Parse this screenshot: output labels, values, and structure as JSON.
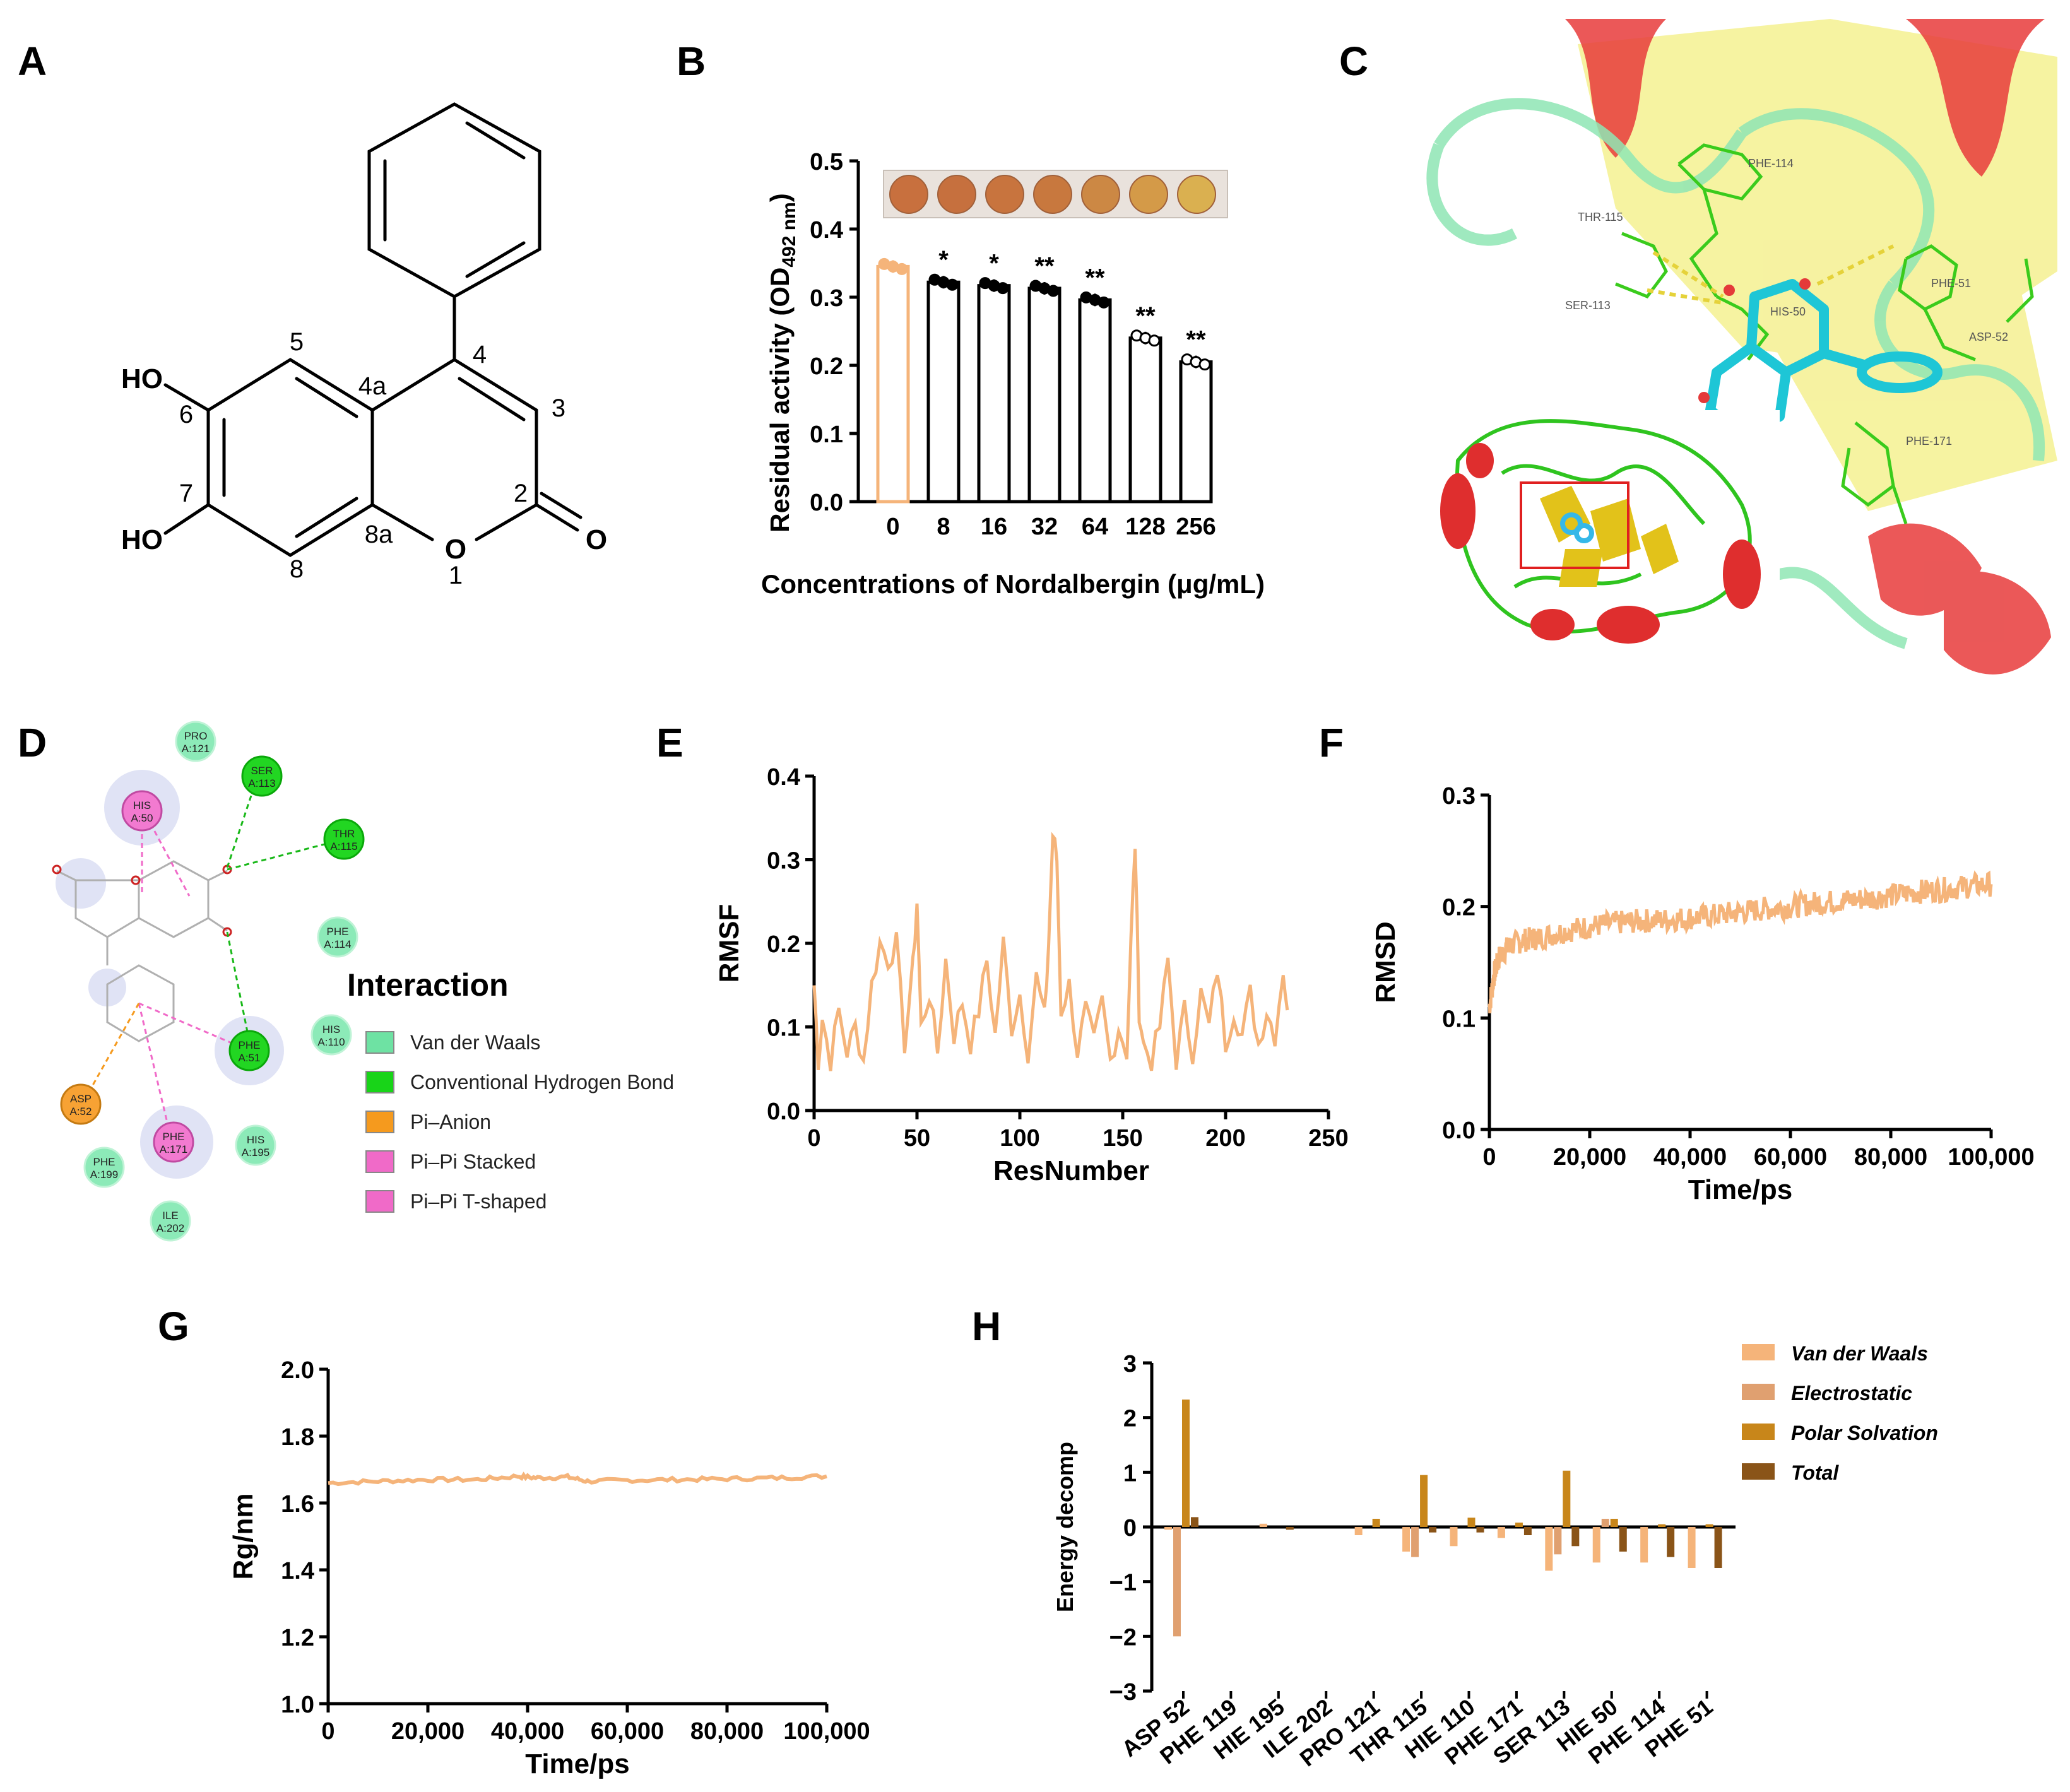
{
  "panels": {
    "A": "A",
    "B": "B",
    "C": "C",
    "D": "D",
    "E": "E",
    "F": "F",
    "G": "G",
    "H": "H"
  },
  "structure": {
    "atoms": [
      "5",
      "4",
      "4a",
      "3",
      "6",
      "2",
      "7",
      "8a",
      "8",
      "1"
    ],
    "substituents": [
      "HO",
      "HO",
      "O",
      "O"
    ]
  },
  "docking": {
    "labels": [
      "PHE-114",
      "THR-115",
      "SER-113",
      "HIS-50",
      "PHE-51",
      "ASP-52",
      "PHE-171"
    ]
  },
  "interaction": {
    "title": "Interaction",
    "legend": [
      {
        "label": "Van der Waals",
        "color": "#6ee2a3"
      },
      {
        "label": "Conventional Hydrogen Bond",
        "color": "#18d418"
      },
      {
        "label": "Pi–Anion",
        "color": "#f59a1e"
      },
      {
        "label": "Pi–Pi Stacked",
        "color": "#f06ac8"
      },
      {
        "label": "Pi–Pi T-shaped",
        "color": "#f06ac8"
      }
    ],
    "residues": [
      {
        "line1": "PRO",
        "line2": "A:121",
        "kind": "vdw"
      },
      {
        "line1": "SER",
        "line2": "A:113",
        "kind": "hbond"
      },
      {
        "line1": "HIS",
        "line2": "A:50",
        "kind": "pi"
      },
      {
        "line1": "THR",
        "line2": "A:115",
        "kind": "hbond"
      },
      {
        "line1": "PHE",
        "line2": "A:114",
        "kind": "vdw"
      },
      {
        "line1": "HIS",
        "line2": "A:110",
        "kind": "vdw"
      },
      {
        "line1": "PHE",
        "line2": "A:51",
        "kind": "hbond"
      },
      {
        "line1": "ASP",
        "line2": "A:52",
        "kind": "anion"
      },
      {
        "line1": "PHE",
        "line2": "A:171",
        "kind": "pi"
      },
      {
        "line1": "HIS",
        "line2": "A:195",
        "kind": "vdw"
      },
      {
        "line1": "PHE",
        "line2": "A:199",
        "kind": "vdw"
      },
      {
        "line1": "ILE",
        "line2": "A:202",
        "kind": "vdw"
      }
    ]
  },
  "colors": {
    "trace": "#f5b47a",
    "bar_control": "#f5b47a",
    "vdw": "#f5b47a",
    "electrostatic": "#e0a070",
    "polar": "#c8861a",
    "total": "#8a5418"
  },
  "chart_data": [
    {
      "panel": "B",
      "type": "bar",
      "categories": [
        "0",
        "8",
        "16",
        "32",
        "64",
        "128",
        "256"
      ],
      "values": [
        0.345,
        0.322,
        0.317,
        0.313,
        0.296,
        0.24,
        0.205
      ],
      "significance": [
        "",
        "*",
        "*",
        "**",
        "**",
        "**",
        "**"
      ],
      "ylabel_main": "Residual activity (OD",
      "ylabel_sub": "492 nm",
      "ylabel_end": ")",
      "xlabel": "Concentrations of Nordalbergin (μg/mL)",
      "ylim": [
        0,
        0.5
      ],
      "yticks": [
        "0.0",
        "0.1",
        "0.2",
        "0.3",
        "0.4",
        "0.5"
      ]
    },
    {
      "panel": "E",
      "type": "line",
      "xlabel": "ResNumber",
      "ylabel": "RMSF",
      "xlim": [
        0,
        250
      ],
      "ylim": [
        0,
        0.4
      ],
      "xticks": [
        "0",
        "50",
        "100",
        "150",
        "200",
        "250"
      ],
      "yticks": [
        "0.0",
        "0.1",
        "0.2",
        "0.3",
        "0.4"
      ],
      "x": [
        0,
        2,
        4,
        8,
        12,
        16,
        20,
        24,
        28,
        32,
        36,
        40,
        44,
        48,
        50,
        52,
        56,
        60,
        64,
        68,
        72,
        76,
        80,
        84,
        88,
        92,
        96,
        100,
        104,
        108,
        112,
        114,
        116,
        118,
        120,
        124,
        128,
        132,
        136,
        140,
        144,
        148,
        152,
        154,
        156,
        158,
        160,
        164,
        168,
        172,
        176,
        180,
        184,
        188,
        192,
        196,
        200,
        204,
        208,
        212,
        216,
        220,
        224,
        228,
        230
      ],
      "y": [
        0.15,
        0.06,
        0.11,
        0.06,
        0.12,
        0.07,
        0.1,
        0.06,
        0.15,
        0.2,
        0.18,
        0.2,
        0.08,
        0.17,
        0.25,
        0.1,
        0.14,
        0.07,
        0.18,
        0.09,
        0.13,
        0.08,
        0.12,
        0.18,
        0.09,
        0.2,
        0.1,
        0.14,
        0.07,
        0.16,
        0.11,
        0.2,
        0.33,
        0.3,
        0.12,
        0.15,
        0.07,
        0.12,
        0.08,
        0.13,
        0.06,
        0.1,
        0.07,
        0.2,
        0.32,
        0.12,
        0.08,
        0.06,
        0.1,
        0.18,
        0.06,
        0.12,
        0.07,
        0.14,
        0.1,
        0.17,
        0.08,
        0.12,
        0.09,
        0.14,
        0.08,
        0.12,
        0.09,
        0.17,
        0.12
      ]
    },
    {
      "panel": "F",
      "type": "line",
      "xlabel": "Time/ps",
      "ylabel": "RMSD",
      "xlim": [
        0,
        100000
      ],
      "ylim": [
        0,
        0.3
      ],
      "xticks": [
        "0",
        "20,000",
        "40,000",
        "60,000",
        "80,000",
        "100,000"
      ],
      "yticks": [
        "0.0",
        "0.1",
        "0.2",
        "0.3"
      ],
      "x": [
        0,
        1000,
        2000,
        4000,
        7000,
        10000,
        15000,
        20000,
        25000,
        30000,
        35000,
        40000,
        45000,
        50000,
        55000,
        60000,
        65000,
        70000,
        75000,
        80000,
        85000,
        90000,
        95000,
        100000
      ],
      "y": [
        0.11,
        0.14,
        0.155,
        0.165,
        0.17,
        0.172,
        0.178,
        0.182,
        0.185,
        0.187,
        0.188,
        0.19,
        0.192,
        0.195,
        0.198,
        0.2,
        0.203,
        0.205,
        0.207,
        0.21,
        0.213,
        0.215,
        0.218,
        0.22
      ]
    },
    {
      "panel": "G",
      "type": "line",
      "xlabel": "Time/ps",
      "ylabel": "Rg/nm",
      "xlim": [
        0,
        100000
      ],
      "ylim": [
        1.0,
        2.0
      ],
      "xticks": [
        "0",
        "20,000",
        "40,000",
        "60,000",
        "80,000",
        "100,000"
      ],
      "yticks": [
        "1.0",
        "1.2",
        "1.4",
        "1.6",
        "1.8",
        "2.0"
      ],
      "x": [
        0,
        10000,
        20000,
        30000,
        38000,
        42000,
        48000,
        52000,
        60000,
        70000,
        80000,
        90000,
        100000
      ],
      "y": [
        1.66,
        1.665,
        1.67,
        1.67,
        1.68,
        1.675,
        1.678,
        1.665,
        1.668,
        1.67,
        1.672,
        1.675,
        1.68
      ]
    },
    {
      "panel": "H",
      "type": "bar",
      "ylabel": "Energy decomp",
      "ylim": [
        -3,
        3
      ],
      "yticks": [
        "3",
        "2",
        "1",
        "0",
        "−1",
        "−2",
        "−3"
      ],
      "categories": [
        "ASP 52",
        "PHE 119",
        "HIE 195",
        "ILE 202",
        "PRO 121",
        "THR 115",
        "HIE 110",
        "PHE 171",
        "SER 113",
        "HIE 50",
        "PHE 114",
        "PHE 51"
      ],
      "series": [
        {
          "name": "Van der Waals",
          "values": [
            -0.05,
            0.0,
            0.06,
            0.0,
            -0.15,
            -0.45,
            -0.35,
            -0.2,
            -0.8,
            -0.65,
            -0.65,
            -0.75
          ]
        },
        {
          "name": "Electrostatic",
          "values": [
            -2.0,
            0.0,
            0.0,
            0.0,
            0.0,
            -0.55,
            0.0,
            0.0,
            -0.5,
            0.15,
            0.0,
            0.0
          ]
        },
        {
          "name": "Polar Solvation",
          "values": [
            2.33,
            0.0,
            0.0,
            0.0,
            0.15,
            0.95,
            0.17,
            0.08,
            1.03,
            0.15,
            0.05,
            0.05
          ]
        },
        {
          "name": "Total",
          "values": [
            0.18,
            0.0,
            -0.05,
            0.0,
            0.0,
            -0.1,
            -0.1,
            -0.15,
            -0.35,
            -0.45,
            -0.55,
            -0.75
          ]
        }
      ]
    }
  ]
}
